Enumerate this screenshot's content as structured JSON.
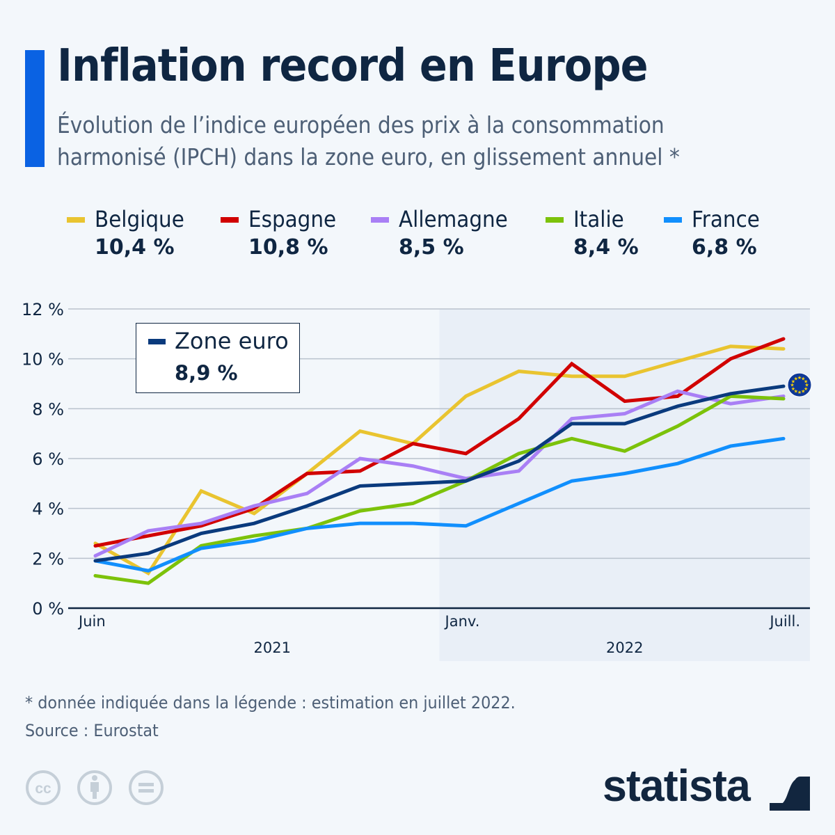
{
  "header": {
    "title": "Inflation record en Europe",
    "subtitle_line1": "Évolution de l’indice européen des prix à la consommation",
    "subtitle_line2": "harmonisé (IPCH) dans la zone euro, en glissement annuel *"
  },
  "legend": [
    {
      "name": "Belgique",
      "value": "10,4 %",
      "color": "#e9c430"
    },
    {
      "name": "Espagne",
      "value": "10,8 %",
      "color": "#d10000"
    },
    {
      "name": "Allemagne",
      "value": "8,5 %",
      "color": "#a97ff5"
    },
    {
      "name": "Italie",
      "value": "8,4 %",
      "color": "#7cc20a"
    },
    {
      "name": "France",
      "value": "6,8 %",
      "color": "#118ffd"
    }
  ],
  "zone_euro_box": {
    "label": "Zone euro",
    "value": "8,9 %",
    "color": "#0a3a7d"
  },
  "chart_data": {
    "type": "line",
    "title": "Inflation record en Europe",
    "xlabel": "",
    "ylabel": "",
    "x": [
      "2021-06",
      "2021-07",
      "2021-08",
      "2021-09",
      "2021-10",
      "2021-11",
      "2021-12",
      "2022-01",
      "2022-02",
      "2022-03",
      "2022-04",
      "2022-05",
      "2022-06",
      "2022-07"
    ],
    "x_tick_labels": [
      {
        "index": 0,
        "label": "Juin"
      },
      {
        "index": 7,
        "label": "Janv."
      },
      {
        "index": 13,
        "label": "Juill."
      }
    ],
    "year_labels": [
      {
        "label": "2021",
        "from": 0,
        "to": 6
      },
      {
        "label": "2022",
        "from": 7,
        "to": 13
      }
    ],
    "y_ticks": [
      "0 %",
      "2 %",
      "4 %",
      "6 %",
      "8 %",
      "10 %",
      "12 %"
    ],
    "ylim": [
      0,
      12
    ],
    "grid": true,
    "shaded_period": "2022",
    "series": [
      {
        "name": "Belgique",
        "color": "#e9c430",
        "values": [
          2.6,
          1.4,
          4.7,
          3.8,
          5.4,
          7.1,
          6.6,
          8.5,
          9.5,
          9.3,
          9.3,
          9.9,
          10.5,
          10.4
        ]
      },
      {
        "name": "Espagne",
        "color": "#d10000",
        "values": [
          2.5,
          2.9,
          3.3,
          4.0,
          5.4,
          5.5,
          6.6,
          6.2,
          7.6,
          9.8,
          8.3,
          8.5,
          10.0,
          10.8
        ]
      },
      {
        "name": "Allemagne",
        "color": "#a97ff5",
        "values": [
          2.1,
          3.1,
          3.4,
          4.1,
          4.6,
          6.0,
          5.7,
          5.2,
          5.5,
          7.6,
          7.8,
          8.7,
          8.2,
          8.5
        ]
      },
      {
        "name": "Italie",
        "color": "#7cc20a",
        "values": [
          1.3,
          1.0,
          2.5,
          2.9,
          3.2,
          3.9,
          4.2,
          5.1,
          6.2,
          6.8,
          6.3,
          7.3,
          8.5,
          8.4
        ]
      },
      {
        "name": "France",
        "color": "#118ffd",
        "values": [
          1.9,
          1.5,
          2.4,
          2.7,
          3.2,
          3.4,
          3.4,
          3.3,
          4.2,
          5.1,
          5.4,
          5.8,
          6.5,
          6.8
        ]
      },
      {
        "name": "Zone euro",
        "color": "#0a3a7d",
        "values": [
          1.9,
          2.2,
          3.0,
          3.4,
          4.1,
          4.9,
          5.0,
          5.1,
          5.9,
          7.4,
          7.4,
          8.1,
          8.6,
          8.9
        ]
      }
    ],
    "end_marker": {
      "series": "Zone euro",
      "icon": "eu-flag-icon"
    }
  },
  "footer": {
    "note": "* donnée indiquée dans la légende : estimation en juillet 2022.",
    "source": "Source : Eurostat",
    "license_icons": [
      "creative-commons-icon",
      "attribution-icon",
      "no-derivatives-icon"
    ],
    "brand": "statista"
  }
}
